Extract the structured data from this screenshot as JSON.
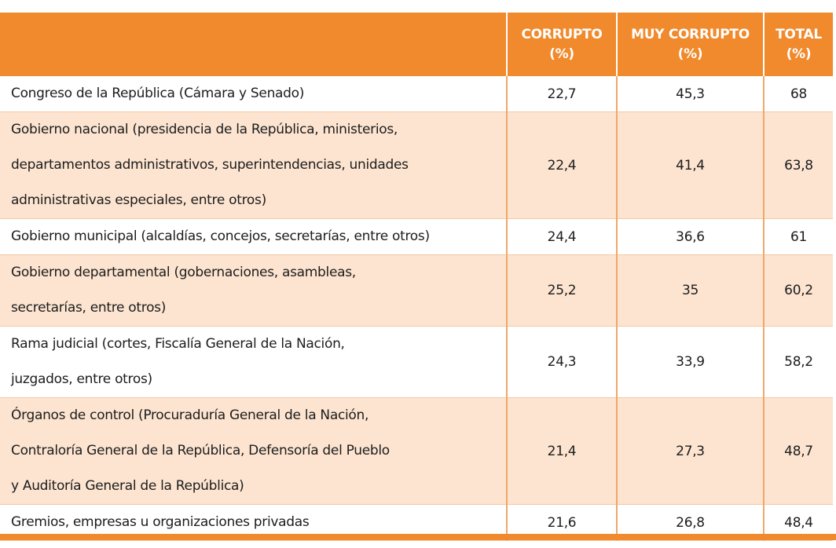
{
  "header": {
    "columns": [
      {
        "line1": "",
        "line2": ""
      },
      {
        "line1": "CORRUPTO",
        "line2": "(%)"
      },
      {
        "line1": "MUY CORRUPTO",
        "line2": "(%)"
      },
      {
        "line1": "TOTAL",
        "line2": "(%)"
      }
    ]
  },
  "rows": [
    {
      "lines": [
        "Congreso de la República (Cámara y Senado)"
      ],
      "corrupto": "22,7",
      "muy_corrupto": "45,3",
      "total": "68"
    },
    {
      "lines": [
        "Gobierno nacional (presidencia de la República, ministerios,",
        "departamentos administrativos, superintendencias, unidades",
        "administrativas especiales, entre otros)"
      ],
      "corrupto": "22,4",
      "muy_corrupto": "41,4",
      "total": "63,8"
    },
    {
      "lines": [
        "Gobierno municipal  (alcaldías, concejos, secretarías, entre otros)"
      ],
      "corrupto": "24,4",
      "muy_corrupto": "36,6",
      "total": "61"
    },
    {
      "lines": [
        "Gobierno departamental (gobernaciones, asambleas,",
        "secretarías, entre otros)"
      ],
      "corrupto": "25,2",
      "muy_corrupto": "35",
      "total": "60,2"
    },
    {
      "lines": [
        "Rama judicial (cortes, Fiscalía General de la Nación,",
        "juzgados, entre otros)"
      ],
      "corrupto": "24,3",
      "muy_corrupto": "33,9",
      "total": "58,2"
    },
    {
      "lines": [
        "Órganos de control (Procuraduría General de la Nación,",
        "Contraloría General de la República, Defensoría del Pueblo",
        "y Auditoría General de la República)"
      ],
      "corrupto": "21,4",
      "muy_corrupto": "27,3",
      "total": "48,7"
    },
    {
      "lines": [
        "Gremios, empresas u organizaciones privadas"
      ],
      "corrupto": "21,6",
      "muy_corrupto": "26,8",
      "total": "48,4"
    }
  ]
}
